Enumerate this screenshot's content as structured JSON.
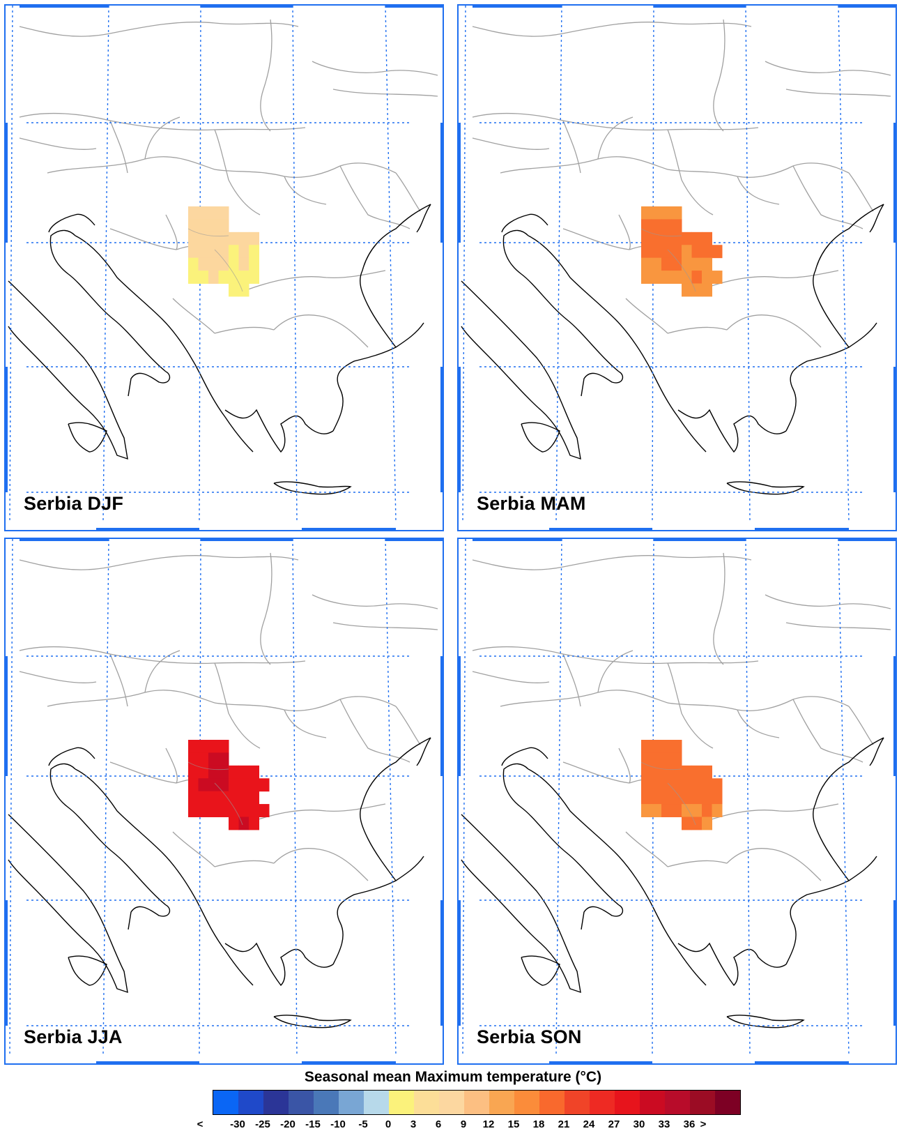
{
  "panels": [
    {
      "label": "Serbia DJF",
      "season": "DJF",
      "cells": [
        [
          "2",
          "2",
          "2",
          "2",
          "",
          "",
          "",
          ""
        ],
        [
          "4",
          "4",
          "4",
          "4",
          "",
          "",
          "",
          ""
        ],
        [
          "4",
          "4",
          "4",
          "4",
          "4",
          "4",
          "4",
          ""
        ],
        [
          "4",
          "4",
          "4",
          "4",
          "3",
          "4",
          "3",
          ""
        ],
        [
          "3",
          "4",
          "4",
          "4",
          "3",
          "4",
          "3",
          ""
        ],
        [
          "3",
          "3",
          "4",
          "3",
          "3",
          "3",
          "3",
          ""
        ],
        [
          "",
          "",
          "",
          "",
          "3",
          "3",
          "",
          ""
        ]
      ]
    },
    {
      "label": "Serbia MAM",
      "season": "MAM",
      "cells": [
        [
          "6",
          "6",
          "6",
          "6",
          "",
          "",
          "",
          ""
        ],
        [
          "7",
          "7",
          "7",
          "7",
          "",
          "",
          "",
          ""
        ],
        [
          "7",
          "7",
          "7",
          "7",
          "7",
          "7",
          "7",
          ""
        ],
        [
          "7",
          "7",
          "7",
          "7",
          "6",
          "7",
          "7",
          "7"
        ],
        [
          "6",
          "6",
          "7",
          "7",
          "6",
          "6",
          "6",
          ""
        ],
        [
          "6",
          "6",
          "6",
          "6",
          "6",
          "7",
          "6",
          "6"
        ],
        [
          "",
          "",
          "",
          "",
          "6",
          "6",
          "6",
          ""
        ]
      ]
    },
    {
      "label": "Serbia JJA",
      "season": "JJA",
      "cells": [
        [
          "10",
          "10",
          "10",
          "10",
          "",
          "",
          "",
          ""
        ],
        [
          "10",
          "10",
          "11",
          "11",
          "",
          "",
          "",
          ""
        ],
        [
          "10",
          "10",
          "11",
          "11",
          "10",
          "10",
          "10",
          ""
        ],
        [
          "10",
          "11",
          "11",
          "11",
          "10",
          "10",
          "10",
          "10"
        ],
        [
          "10",
          "10",
          "10",
          "10",
          "10",
          "10",
          "10",
          ""
        ],
        [
          "10",
          "10",
          "10",
          "10",
          "10",
          "10",
          "10",
          "10"
        ],
        [
          "",
          "",
          "",
          "",
          "10",
          "11",
          "10",
          ""
        ]
      ]
    },
    {
      "label": "Serbia SON",
      "season": "SON",
      "cells": [
        [
          "7",
          "7",
          "7",
          "7",
          "",
          "",
          "",
          ""
        ],
        [
          "7",
          "7",
          "7",
          "7",
          "",
          "",
          "",
          ""
        ],
        [
          "7",
          "7",
          "7",
          "7",
          "7",
          "7",
          "7",
          ""
        ],
        [
          "7",
          "7",
          "7",
          "7",
          "7",
          "7",
          "7",
          "7"
        ],
        [
          "7",
          "7",
          "7",
          "7",
          "7",
          "7",
          "7",
          "7"
        ],
        [
          "6",
          "6",
          "7",
          "7",
          "6",
          "6",
          "7",
          "6"
        ],
        [
          "",
          "",
          "",
          "",
          "7",
          "7",
          "6",
          ""
        ]
      ]
    }
  ],
  "legend": {
    "title": "Seasonal mean Maximum temperature (°C)",
    "tick_labels": [
      "<",
      "-30",
      "-25",
      "-20",
      "-15",
      "-10",
      "-5",
      "0",
      "3",
      "6",
      "9",
      "12",
      "15",
      "18",
      "21",
      "24",
      "27",
      "30",
      "33",
      "36",
      ">"
    ],
    "colors": [
      "#0a66f5",
      "#1f49c9",
      "#2b3597",
      "#3a55a6",
      "#4a78b8",
      "#79a6d4",
      "#b7d9ea",
      "#fbf27b",
      "#fcde98",
      "#fcd7a0",
      "#fcbf82",
      "#f9a652",
      "#fb8c3a",
      "#f9692d",
      "#f04428",
      "#ee2a23",
      "#e7141c",
      "#cb0b22",
      "#b80c2a",
      "#9b0c24",
      "#7d0024"
    ]
  },
  "cell_color_key": {
    "2": "#fcd7a0",
    "3": "#fbf27b",
    "4": "#fcd79e",
    "6": "#f9963f",
    "7": "#f96f2e",
    "10": "#e9141b",
    "11": "#cb0b22"
  },
  "grid_color": "#1f6ff0",
  "border_color": "#a0a0a0",
  "coast_color": "#000000"
}
